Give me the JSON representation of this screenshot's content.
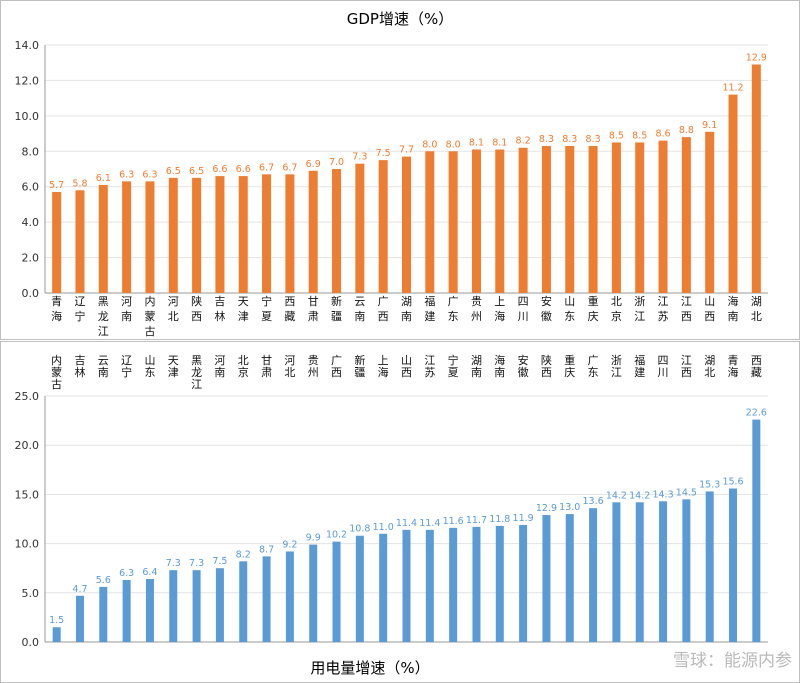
{
  "watermark": {
    "text": "雪球：能源内参"
  },
  "chart_data": [
    {
      "type": "bar",
      "title": "GDP增速（%）",
      "color": "#ED7D31",
      "ylim": [
        0,
        14
      ],
      "yticks": [
        "0.0",
        "2.0",
        "4.0",
        "6.0",
        "8.0",
        "10.0",
        "12.0",
        "14.0"
      ],
      "grid": true,
      "categories": [
        [
          "青",
          "海"
        ],
        [
          "辽",
          "宁"
        ],
        [
          "黑",
          "龙",
          "江"
        ],
        [
          "河",
          "南"
        ],
        [
          "内",
          "蒙",
          "古"
        ],
        [
          "河",
          "北"
        ],
        [
          "陕",
          "西"
        ],
        [
          "吉",
          "林"
        ],
        [
          "天",
          "津"
        ],
        [
          "宁",
          "夏"
        ],
        [
          "西",
          "藏"
        ],
        [
          "甘",
          "肃"
        ],
        [
          "新",
          "疆"
        ],
        [
          "云",
          "南"
        ],
        [
          "广",
          "西"
        ],
        [
          "湖",
          "南"
        ],
        [
          "福",
          "建"
        ],
        [
          "广",
          "东"
        ],
        [
          "贵",
          "州"
        ],
        [
          "上",
          "海"
        ],
        [
          "四",
          "川"
        ],
        [
          "安",
          "徽"
        ],
        [
          "山",
          "东"
        ],
        [
          "重",
          "庆"
        ],
        [
          "北",
          "京"
        ],
        [
          "浙",
          "江"
        ],
        [
          "江",
          "苏"
        ],
        [
          "江",
          "西"
        ],
        [
          "山",
          "西"
        ],
        [
          "海",
          "南"
        ],
        [
          "湖",
          "北"
        ]
      ],
      "values": [
        5.7,
        5.8,
        6.1,
        6.3,
        6.3,
        6.5,
        6.5,
        6.6,
        6.6,
        6.7,
        6.7,
        6.9,
        7.0,
        7.3,
        7.5,
        7.7,
        8.0,
        8.0,
        8.1,
        8.1,
        8.2,
        8.3,
        8.3,
        8.3,
        8.5,
        8.5,
        8.6,
        8.8,
        9.1,
        11.2,
        12.9
      ],
      "labels": [
        "5.7",
        "5.8",
        "6.1",
        "6.3",
        "6.3",
        "6.5",
        "6.5",
        "6.6",
        "6.6",
        "6.7",
        "6.7",
        "6.9",
        "7.0",
        "7.3",
        "7.5",
        "7.7",
        "8.0",
        "8.0",
        "8.1",
        "8.1",
        "8.2",
        "8.3",
        "8.3",
        "8.3",
        "8.5",
        "8.5",
        "8.6",
        "8.8",
        "9.1",
        "11.2",
        "12.9"
      ]
    },
    {
      "type": "bar",
      "title": "用电量增速（%）",
      "color": "#5B9BD5",
      "ylim": [
        0,
        25
      ],
      "yticks": [
        "0.0",
        "5.0",
        "10.0",
        "15.0",
        "20.0",
        "25.0"
      ],
      "grid": true,
      "categories": [
        [
          "内",
          "蒙",
          "古"
        ],
        [
          "吉",
          "林"
        ],
        [
          "云",
          "南"
        ],
        [
          "辽",
          "宁"
        ],
        [
          "山",
          "东"
        ],
        [
          "天",
          "津"
        ],
        [
          "黑",
          "龙",
          "江"
        ],
        [
          "河",
          "南"
        ],
        [
          "北",
          "京"
        ],
        [
          "甘",
          "肃"
        ],
        [
          "河",
          "北"
        ],
        [
          "贵",
          "州"
        ],
        [
          "广",
          "西"
        ],
        [
          "新",
          "疆"
        ],
        [
          "上",
          "海"
        ],
        [
          "山",
          "西"
        ],
        [
          "江",
          "苏"
        ],
        [
          "宁",
          "夏"
        ],
        [
          "湖",
          "南"
        ],
        [
          "海",
          "南"
        ],
        [
          "安",
          "徽"
        ],
        [
          "陕",
          "西"
        ],
        [
          "重",
          "庆"
        ],
        [
          "广",
          "东"
        ],
        [
          "浙",
          "江"
        ],
        [
          "福",
          "建"
        ],
        [
          "四",
          "川"
        ],
        [
          "江",
          "西"
        ],
        [
          "湖",
          "北"
        ],
        [
          "青",
          "海"
        ],
        [
          "西",
          "藏"
        ]
      ],
      "values": [
        1.5,
        4.7,
        5.6,
        6.3,
        6.4,
        7.3,
        7.3,
        7.5,
        8.2,
        8.7,
        9.2,
        9.9,
        10.2,
        10.8,
        11.0,
        11.4,
        11.4,
        11.6,
        11.7,
        11.8,
        11.9,
        12.9,
        13.0,
        13.6,
        14.2,
        14.2,
        14.3,
        14.5,
        15.3,
        15.6,
        22.6
      ],
      "labels": [
        "1.5",
        "4.7",
        "5.6",
        "6.3",
        "6.4",
        "7.3",
        "7.3",
        "7.5",
        "8.2",
        "8.7",
        "9.2",
        "9.9",
        "10.2",
        "10.8",
        "11.0",
        "11.4",
        "11.4",
        "11.6",
        "11.7",
        "11.8",
        "11.9",
        "12.9",
        "13.0",
        "13.6",
        "14.2",
        "14.2",
        "14.3",
        "14.5",
        "15.3",
        "15.6",
        "22.6"
      ]
    }
  ]
}
